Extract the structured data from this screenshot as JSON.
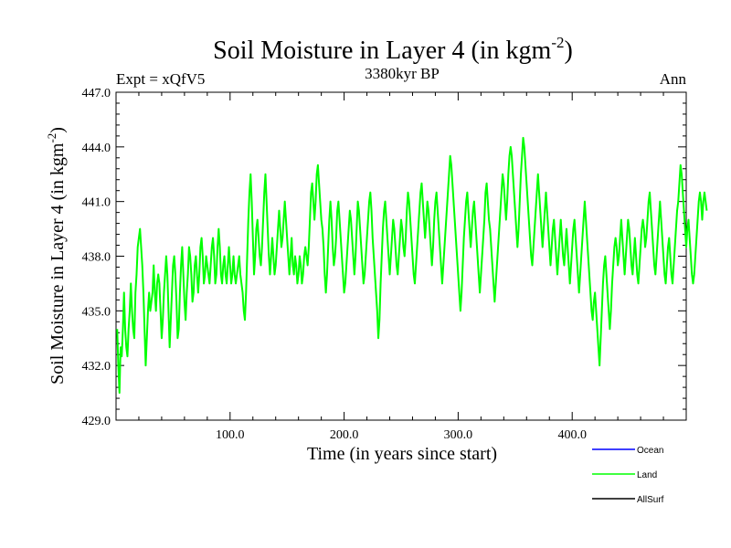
{
  "chart_data": {
    "type": "line",
    "title_main": "Soil Moisture in Layer 4 (in kgm",
    "title_sup": "-2",
    "title_close": ")",
    "subtitle_left": "Expt = xQfV5",
    "subtitle_center": "3380kyr BP",
    "subtitle_right": "Ann",
    "xlabel": "Time (in years since start)",
    "ylabel_main": "Soil Moisture in Layer 4 (in kgm",
    "ylabel_sup": "-2",
    "ylabel_close": ")",
    "xlim": [
      0,
      500
    ],
    "ylim": [
      429,
      447
    ],
    "x_ticks": [
      100,
      200,
      300,
      400
    ],
    "x_tick_labels": [
      "100.0",
      "200.0",
      "300.0",
      "400.0"
    ],
    "y_ticks": [
      429,
      432,
      435,
      438,
      441,
      444,
      447
    ],
    "y_tick_labels": [
      "429.0",
      "432.0",
      "435.0",
      "438.0",
      "441.0",
      "444.0",
      "447.0"
    ],
    "legend": [
      {
        "name": "Ocean",
        "color": "#0000ff"
      },
      {
        "name": "Land",
        "color": "#00ff00"
      },
      {
        "name": "AllSurf",
        "color": "#000000"
      }
    ],
    "series": [
      {
        "name": "Land",
        "color": "#00ff00",
        "x_start": 1,
        "x_step": 1,
        "values": [
          434.0,
          432.0,
          430.5,
          433.0,
          432.5,
          434.0,
          436.0,
          434.0,
          433.0,
          432.5,
          434.0,
          435.0,
          436.5,
          435.0,
          434.0,
          433.5,
          436.0,
          437.0,
          438.5,
          439.0,
          439.5,
          438.5,
          437.5,
          436.0,
          434.0,
          432.0,
          433.5,
          435.0,
          436.0,
          435.0,
          435.5,
          436.0,
          437.5,
          436.0,
          435.0,
          436.5,
          437.0,
          436.5,
          435.0,
          433.5,
          434.5,
          436.0,
          437.0,
          438.0,
          437.0,
          435.0,
          433.0,
          434.5,
          436.0,
          437.5,
          438.0,
          437.0,
          435.5,
          433.5,
          434.0,
          436.0,
          437.5,
          438.5,
          437.0,
          435.5,
          434.5,
          436.0,
          437.0,
          438.5,
          438.0,
          437.0,
          435.5,
          436.0,
          437.5,
          438.0,
          437.0,
          436.0,
          437.0,
          438.5,
          439.0,
          438.0,
          436.5,
          437.0,
          438.0,
          437.5,
          437.0,
          436.5,
          437.5,
          438.5,
          439.0,
          438.0,
          436.5,
          437.0,
          438.5,
          439.5,
          438.5,
          437.0,
          436.5,
          437.5,
          438.0,
          437.0,
          436.5,
          437.5,
          438.5,
          437.5,
          436.5,
          437.0,
          438.0,
          437.0,
          436.5,
          437.0,
          437.5,
          438.0,
          437.0,
          436.5,
          436.0,
          435.0,
          434.5,
          436.0,
          438.0,
          440.0,
          441.5,
          442.5,
          441.0,
          439.0,
          437.0,
          438.0,
          439.5,
          440.0,
          439.0,
          438.0,
          437.5,
          438.5,
          440.0,
          441.5,
          442.5,
          441.0,
          439.5,
          438.0,
          437.0,
          438.0,
          439.0,
          438.0,
          437.0,
          437.5,
          438.5,
          439.5,
          440.5,
          439.5,
          438.5,
          439.0,
          440.0,
          441.0,
          440.0,
          439.0,
          438.0,
          437.0,
          438.0,
          439.0,
          437.5,
          437.0,
          438.0,
          437.5,
          436.5,
          437.0,
          438.0,
          437.5,
          436.5,
          437.0,
          438.0,
          438.5,
          438.0,
          437.5,
          438.5,
          440.0,
          441.5,
          442.0,
          441.0,
          440.0,
          441.0,
          442.5,
          443.0,
          442.0,
          441.0,
          440.0,
          439.5,
          438.5,
          437.0,
          436.0,
          437.0,
          438.5,
          440.0,
          441.0,
          440.0,
          438.5,
          437.5,
          438.0,
          439.0,
          440.5,
          441.0,
          440.0,
          439.0,
          438.0,
          437.0,
          436.0,
          436.5,
          437.5,
          438.5,
          439.5,
          440.5,
          440.0,
          439.0,
          438.0,
          437.0,
          438.0,
          439.5,
          441.0,
          440.5,
          439.5,
          438.5,
          437.5,
          436.5,
          437.0,
          438.0,
          439.0,
          440.0,
          441.0,
          441.5,
          440.5,
          439.0,
          438.0,
          437.0,
          436.0,
          435.0,
          433.5,
          434.5,
          436.5,
          438.0,
          439.5,
          440.5,
          441.0,
          440.0,
          439.0,
          438.0,
          437.0,
          438.0,
          439.0,
          440.0,
          439.5,
          438.5,
          437.5,
          437.0,
          438.0,
          439.0,
          440.0,
          439.5,
          438.5,
          438.0,
          439.0,
          440.5,
          441.5,
          441.0,
          440.0,
          439.0,
          438.0,
          437.0,
          436.5,
          437.5,
          438.5,
          439.5,
          440.5,
          441.5,
          442.0,
          441.0,
          440.0,
          439.0,
          440.0,
          441.0,
          440.5,
          439.5,
          438.5,
          437.5,
          438.5,
          440.0,
          441.0,
          441.5,
          440.5,
          439.5,
          438.5,
          437.5,
          436.5,
          437.5,
          438.5,
          439.5,
          440.5,
          441.5,
          442.5,
          443.5,
          443.0,
          442.0,
          441.0,
          440.0,
          439.0,
          438.0,
          437.0,
          436.0,
          435.0,
          436.0,
          437.5,
          439.0,
          440.0,
          441.0,
          441.5,
          440.5,
          439.5,
          438.5,
          439.5,
          440.5,
          441.0,
          440.0,
          439.0,
          438.0,
          437.0,
          436.0,
          437.0,
          438.0,
          439.0,
          440.0,
          441.5,
          442.0,
          441.0,
          440.0,
          439.5,
          438.5,
          437.5,
          436.5,
          435.5,
          436.5,
          437.5,
          438.5,
          439.5,
          440.5,
          441.5,
          442.5,
          442.0,
          441.0,
          440.0,
          441.0,
          442.5,
          443.5,
          444.0,
          443.5,
          442.5,
          441.5,
          440.5,
          439.5,
          438.5,
          439.5,
          441.0,
          442.5,
          443.5,
          444.5,
          444.0,
          443.0,
          442.0,
          441.0,
          440.0,
          439.0,
          438.0,
          437.5,
          438.5,
          439.5,
          440.5,
          441.5,
          442.5,
          441.5,
          440.5,
          439.5,
          438.5,
          439.5,
          440.5,
          441.5,
          440.5,
          439.5,
          438.5,
          437.5,
          438.5,
          439.5,
          440.0,
          439.0,
          438.0,
          437.0,
          438.0,
          439.0,
          440.0,
          439.0,
          438.0,
          437.5,
          438.5,
          439.5,
          438.5,
          437.5,
          436.5,
          437.5,
          438.5,
          439.5,
          440.0,
          439.0,
          438.0,
          437.0,
          436.0,
          437.0,
          438.0,
          439.0,
          440.0,
          441.0,
          440.0,
          439.0,
          438.0,
          437.0,
          436.0,
          435.0,
          434.5,
          435.5,
          436.0,
          435.0,
          434.0,
          433.0,
          432.0,
          433.5,
          435.0,
          436.5,
          437.5,
          438.0,
          437.0,
          436.0,
          435.0,
          434.0,
          435.0,
          436.5,
          437.5,
          438.5,
          439.0,
          438.5,
          437.5,
          438.0,
          439.0,
          440.0,
          439.0,
          438.0,
          437.0,
          438.0,
          439.0,
          440.0,
          439.5,
          438.5,
          437.5,
          437.0,
          438.0,
          439.0,
          438.0,
          437.0,
          436.5,
          437.5,
          438.5,
          439.5,
          440.0,
          439.5,
          438.5,
          439.0,
          440.0,
          441.0,
          441.5,
          440.5,
          439.5,
          438.5,
          437.5,
          437.0,
          438.0,
          439.0,
          440.0,
          441.0,
          440.0,
          439.0,
          438.0,
          437.0,
          436.5,
          437.5,
          438.5,
          439.0,
          438.0,
          437.0,
          436.5,
          437.5,
          438.5,
          439.5,
          440.5,
          441.0,
          442.0,
          443.0,
          442.5,
          441.5,
          440.5,
          439.5,
          438.5,
          439.5,
          440.0,
          439.0,
          438.0,
          437.0,
          436.5,
          437.0,
          438.0,
          439.0,
          440.0,
          441.0,
          441.5,
          441.0,
          440.0,
          441.0,
          441.5,
          441.0,
          440.5
        ]
      }
    ]
  }
}
